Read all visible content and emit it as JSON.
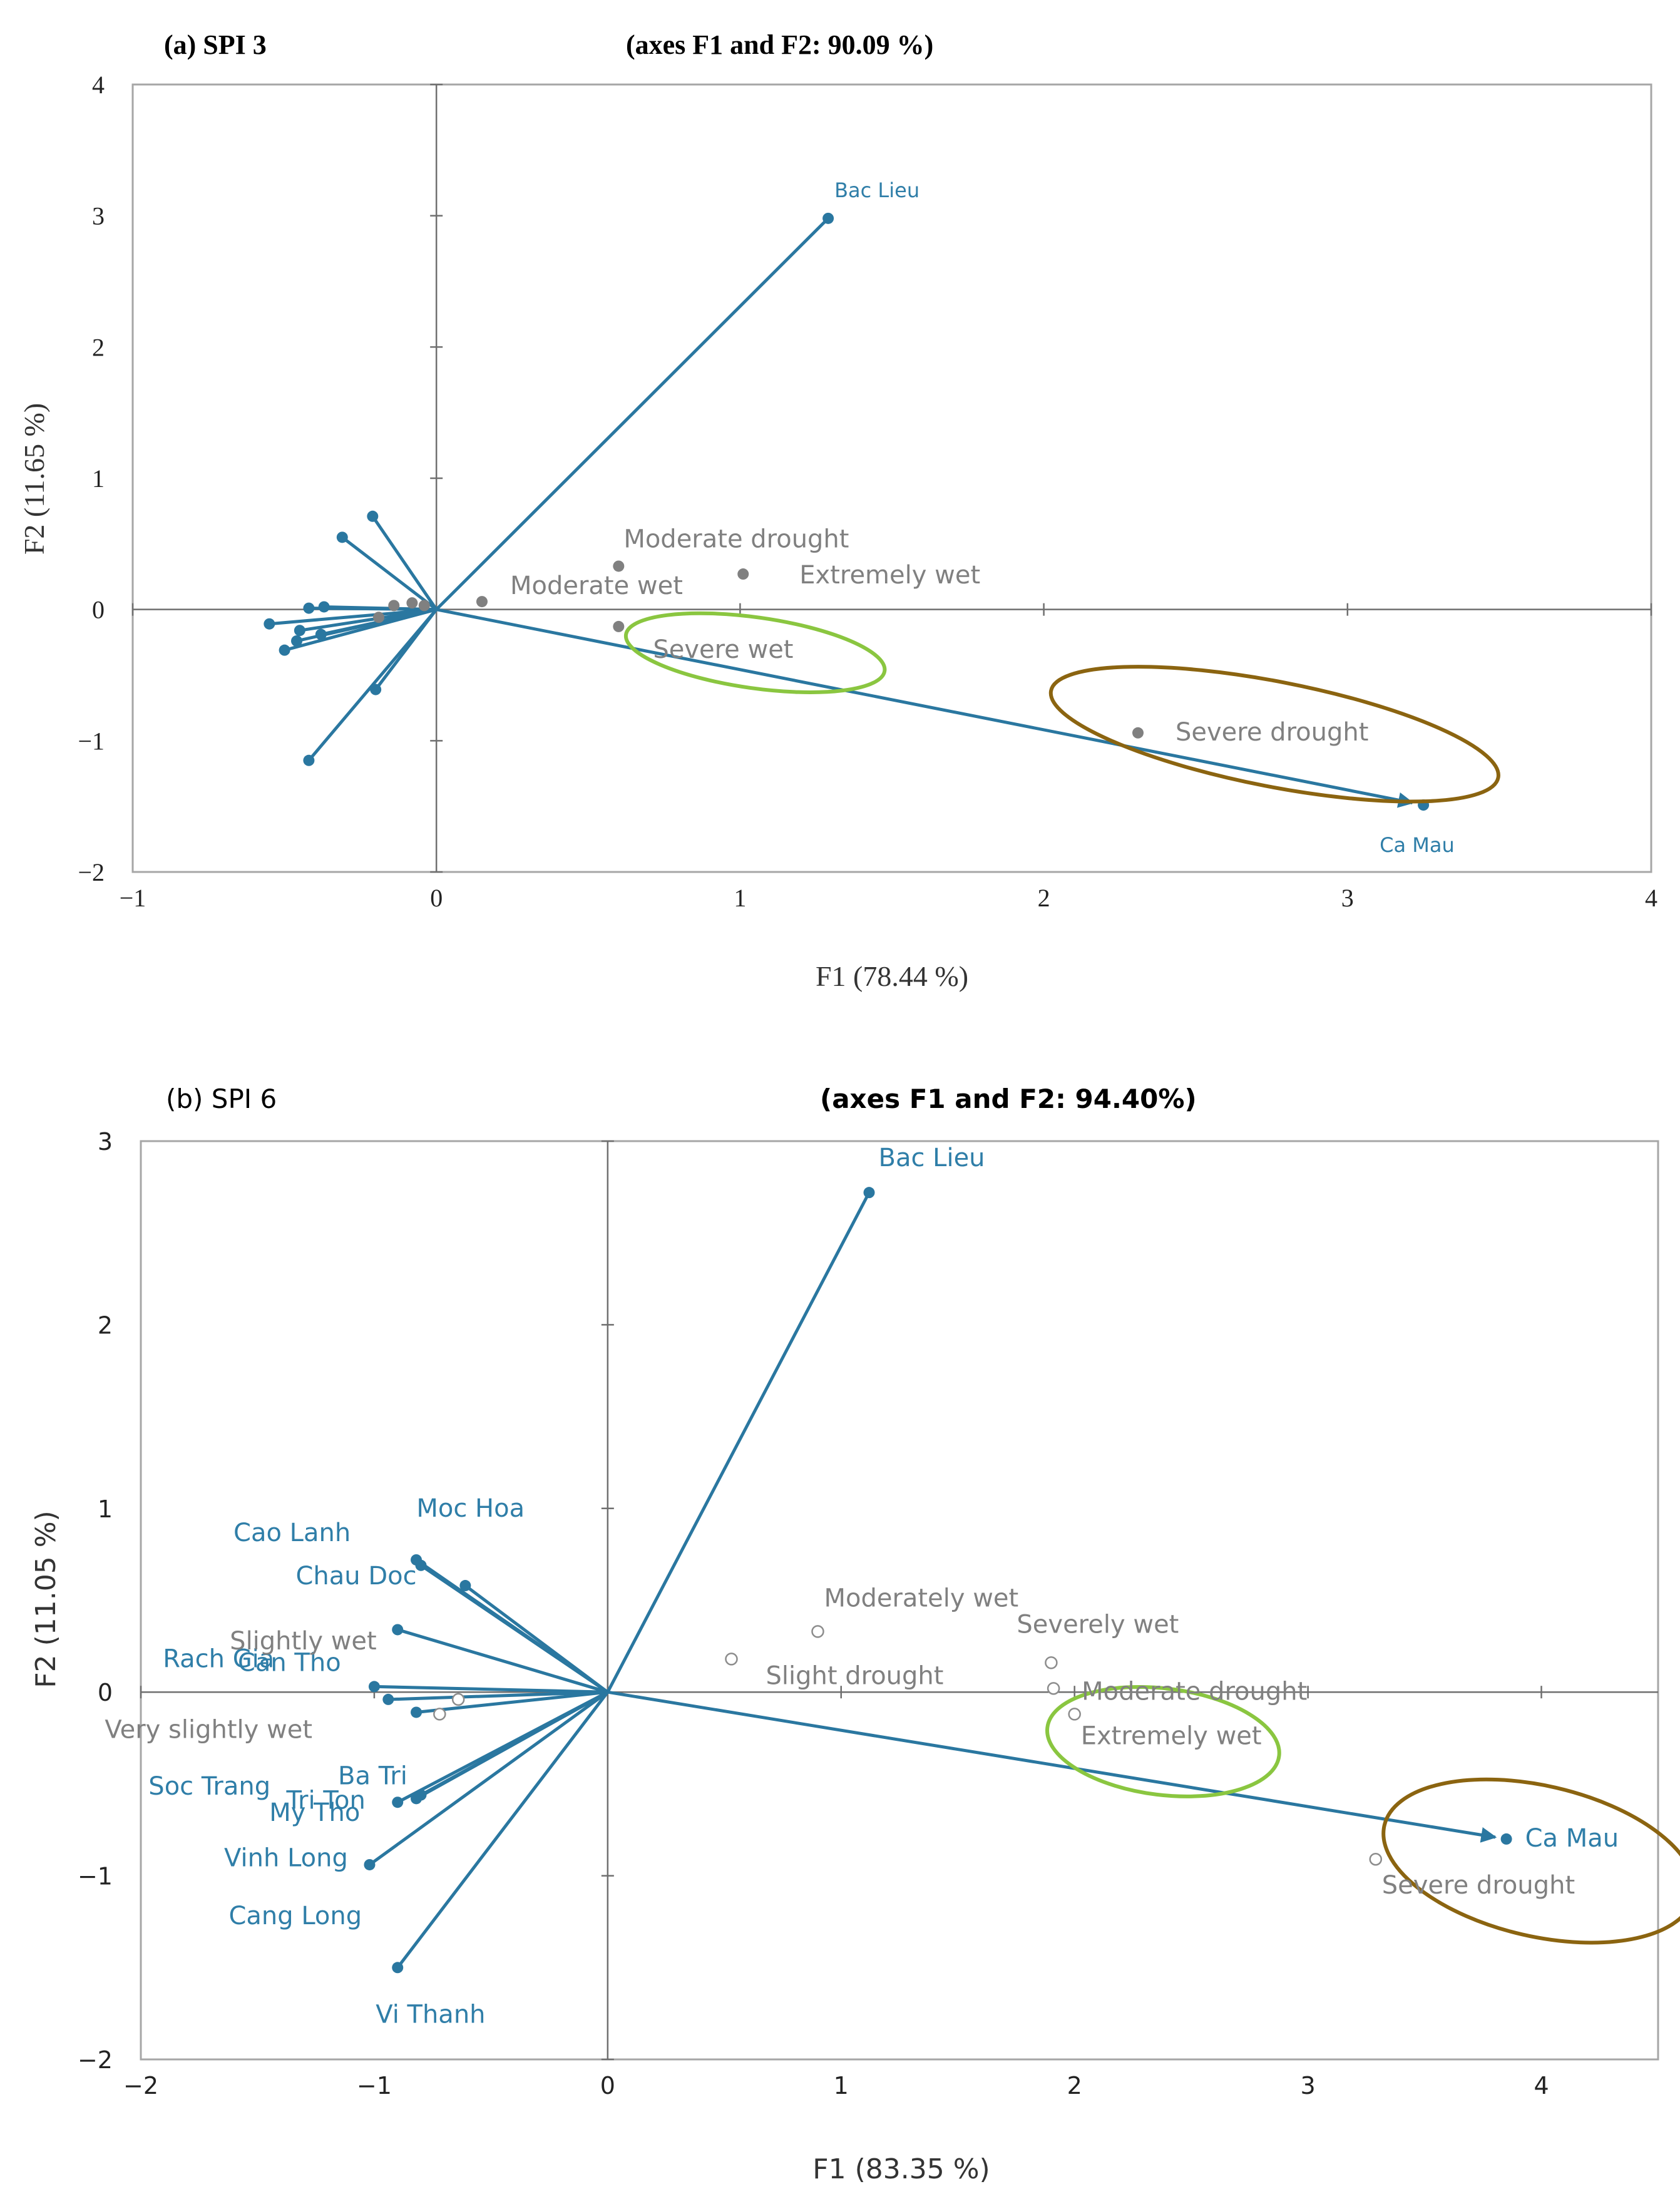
{
  "colors": {
    "vector": "#2a77a0",
    "category": "#808080",
    "axis": "#6f6f6f",
    "frame": "#a6a6a6",
    "green": "#8ac640",
    "brown": "#8b6410",
    "label_blue": "#2f7ea8"
  },
  "chart_data": [
    {
      "type": "scatter",
      "panel_label": "(a) SPI 3",
      "title": "(axes F1 and F2: 90.09 %)",
      "xlabel": "F1 (78.44 %)",
      "ylabel": "F2 (11.65 %)",
      "xlim": [
        -1,
        4
      ],
      "ylim": [
        -2,
        4
      ],
      "xticks": [
        "−1",
        "0",
        "1",
        "2",
        "3",
        "4"
      ],
      "yticks": [
        "−2",
        "−1",
        "0",
        "1",
        "2",
        "3",
        "4"
      ],
      "stations": [
        {
          "name": "Bac Lieu",
          "x": 1.29,
          "y": 2.98,
          "label": true
        },
        {
          "name": "Ca Mau",
          "x": 3.25,
          "y": -1.49,
          "label": true,
          "arrow": true
        },
        {
          "name": "",
          "x": -0.21,
          "y": 0.71
        },
        {
          "name": "",
          "x": -0.31,
          "y": 0.55
        },
        {
          "name": "",
          "x": -0.55,
          "y": -0.11
        },
        {
          "name": "",
          "x": -0.42,
          "y": 0.01
        },
        {
          "name": "",
          "x": -0.37,
          "y": 0.02
        },
        {
          "name": "",
          "x": -0.45,
          "y": -0.16
        },
        {
          "name": "",
          "x": -0.5,
          "y": -0.31
        },
        {
          "name": "",
          "x": -0.46,
          "y": -0.24
        },
        {
          "name": "",
          "x": -0.38,
          "y": -0.19
        },
        {
          "name": "",
          "x": -0.2,
          "y": -0.61
        },
        {
          "name": "",
          "x": -0.42,
          "y": -1.15
        }
      ],
      "categories": [
        {
          "name": "Moderate drought",
          "x": 0.6,
          "y": 0.33
        },
        {
          "name": "Moderate wet",
          "x": 0.15,
          "y": 0.06
        },
        {
          "name": "Extremely wet",
          "x": 1.01,
          "y": 0.27
        },
        {
          "name": "Severe wet",
          "x": 0.6,
          "y": -0.13
        },
        {
          "name": "Severe drought",
          "x": 2.31,
          "y": -0.94
        },
        {
          "name": "",
          "x": -0.14,
          "y": 0.03
        },
        {
          "name": "",
          "x": -0.08,
          "y": 0.05
        },
        {
          "name": "",
          "x": -0.04,
          "y": 0.03
        },
        {
          "name": "",
          "x": -0.19,
          "y": -0.06
        }
      ],
      "ellipses": [
        {
          "color": "green",
          "cx": 1.05,
          "cy": -0.33,
          "rx": 0.43,
          "ry": 0.27,
          "angle": 8
        },
        {
          "color": "brown",
          "cx": 2.76,
          "cy": -0.95,
          "rx": 0.75,
          "ry": 0.4,
          "angle": 11
        }
      ]
    },
    {
      "type": "scatter",
      "panel_label": "(b) SPI 6",
      "title": "(axes F1 and F2: 94.40%)",
      "xlabel": "F1 (83.35 %)",
      "ylabel": "F2 (11.05 %)",
      "xlim": [
        -2,
        4.5
      ],
      "ylim": [
        -2,
        3
      ],
      "xticks": [
        "−2",
        "−1",
        "0",
        "1",
        "2",
        "3",
        "4"
      ],
      "yticks": [
        "−2",
        "−1",
        "0",
        "1",
        "2",
        "3"
      ],
      "stations": [
        {
          "name": "Bac Lieu",
          "x": 1.12,
          "y": 2.72
        },
        {
          "name": "Ca Mau",
          "x": 3.85,
          "y": -0.8
        },
        {
          "name": "Moc Hoa",
          "x": -0.61,
          "y": 0.58
        },
        {
          "name": "Cao Lanh",
          "x": -0.82,
          "y": 0.72
        },
        {
          "name": "Chau Doc",
          "x": -0.8,
          "y": 0.69
        },
        {
          "name": "Rach Gia",
          "x": -0.9,
          "y": 0.34
        },
        {
          "name": "Can Tho",
          "x": -1.0,
          "y": 0.03
        },
        {
          "name": "Soc Trang",
          "x": -0.94,
          "y": -0.04
        },
        {
          "name": "Ba Tri",
          "x": -0.82,
          "y": -0.11
        },
        {
          "name": "Tri Ton",
          "x": -0.8,
          "y": -0.56
        },
        {
          "name": "Vinh Long",
          "x": -0.82,
          "y": -0.58
        },
        {
          "name": "My Tho",
          "x": -0.9,
          "y": -0.6
        },
        {
          "name": "Cang Long",
          "x": -1.02,
          "y": -0.94
        },
        {
          "name": "Vi Thanh",
          "x": -0.9,
          "y": -1.5
        }
      ],
      "categories": [
        {
          "name": "Moderately wet",
          "x": 0.9,
          "y": 0.33
        },
        {
          "name": "Slight drought",
          "x": 0.53,
          "y": 0.18
        },
        {
          "name": "Slightly wet",
          "x": -0.64,
          "y": -0.04
        },
        {
          "name": "Very slightly wet",
          "x": -0.72,
          "y": -0.12
        },
        {
          "name": "Severely wet",
          "x": 1.9,
          "y": 0.16
        },
        {
          "name": "Moderate drought",
          "x": 1.91,
          "y": 0.02
        },
        {
          "name": "Extremely wet",
          "x": 2.0,
          "y": -0.12
        },
        {
          "name": "Severe drought",
          "x": 3.29,
          "y": -0.91
        }
      ],
      "ellipses": [
        {
          "color": "green",
          "cx": 2.38,
          "cy": -0.27,
          "rx": 0.5,
          "ry": 0.29,
          "angle": 7
        },
        {
          "color": "brown",
          "cx": 3.99,
          "cy": -0.92,
          "rx": 0.68,
          "ry": 0.41,
          "angle": 13
        }
      ]
    }
  ]
}
